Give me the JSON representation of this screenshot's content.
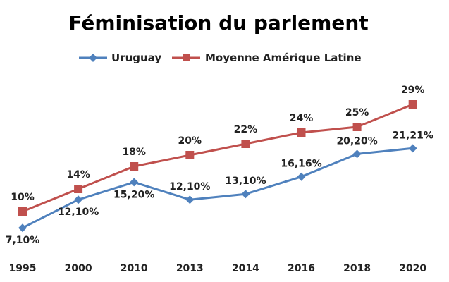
{
  "chart_data": {
    "type": "line",
    "title": "Féminisation du parlement",
    "categories": [
      "1995",
      "2000",
      "2010",
      "2013",
      "2014",
      "2016",
      "2018",
      "2020"
    ],
    "series": [
      {
        "name": "Uruguay",
        "color": "#4f81bd",
        "marker": "diamond",
        "values": [
          7.1,
          12.1,
          15.2,
          12.1,
          13.1,
          16.16,
          20.2,
          21.21
        ],
        "labels": [
          "7,10%",
          "12,10%",
          "15,20%",
          "12,10%",
          "13,10%",
          "16,16%",
          "20,20%",
          "21,21%"
        ]
      },
      {
        "name": "Moyenne Amérique Latine",
        "color": "#c0504d",
        "marker": "square",
        "values": [
          10,
          14,
          18,
          20,
          22,
          24,
          25,
          29
        ],
        "labels": [
          "10%",
          "14%",
          "18%",
          "20%",
          "22%",
          "24%",
          "25%",
          "29%"
        ]
      }
    ],
    "ylim": [
      0,
      35
    ],
    "grid": false,
    "legend_position": "top"
  }
}
